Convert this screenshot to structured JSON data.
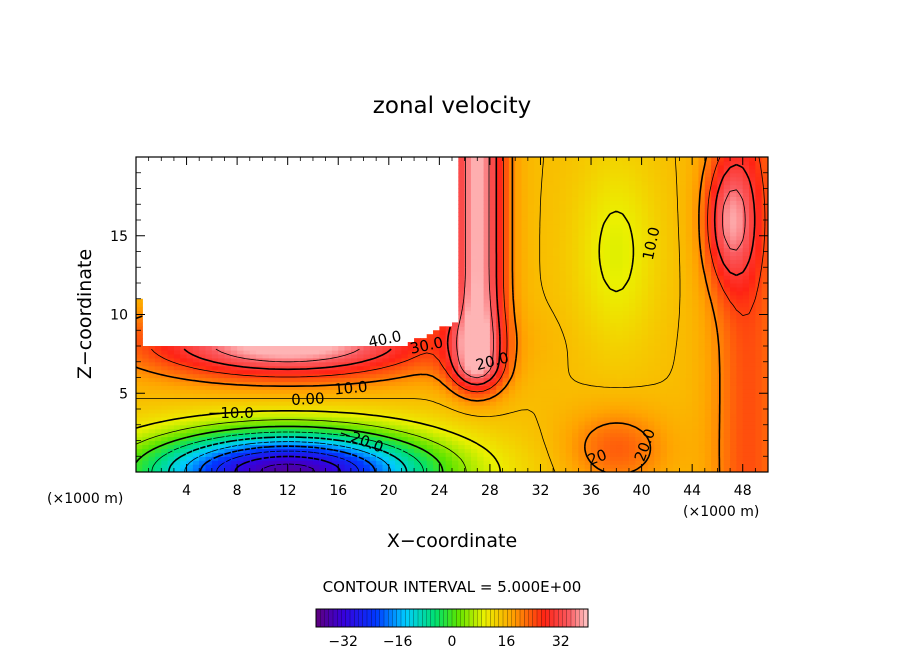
{
  "chart_data": {
    "type": "heatmap",
    "title": "zonal velocity",
    "xlabel": "X−coordinate",
    "ylabel": "Z−coordinate",
    "x_unit_left": "(×1000 m)",
    "x_unit_right": "(×1000 m)",
    "xlim": [
      0,
      50
    ],
    "ylim": [
      0,
      20
    ],
    "x_ticks": [
      4,
      8,
      12,
      16,
      20,
      24,
      28,
      32,
      36,
      40,
      44,
      48
    ],
    "x_tick_labels": [
      "4",
      "8",
      "12",
      "16",
      "20",
      "24",
      "28",
      "32",
      "36",
      "40",
      "44",
      "48"
    ],
    "y_ticks": [
      5,
      10,
      15
    ],
    "y_tick_labels": [
      "5",
      "10",
      "15"
    ],
    "contour_interval_text": "CONTOUR INTERVAL = 5.000E+00",
    "contour_interval": 5,
    "colorbar": {
      "min": -40,
      "max": 40,
      "ticks": [
        -32,
        -16,
        0,
        16,
        32
      ],
      "tick_labels": [
        "−32",
        "−16",
        "0",
        "16",
        "32"
      ]
    },
    "contour_labels": [
      {
        "text": "40.0",
        "x": 19.7,
        "z": 8.4,
        "angle": -12
      },
      {
        "text": "30.0",
        "x": 23.0,
        "z": 8.0,
        "angle": -12
      },
      {
        "text": "20.0",
        "x": 28.2,
        "z": 7.0,
        "angle": -14
      },
      {
        "text": "10.0",
        "x": 17.0,
        "z": 5.3,
        "angle": -5
      },
      {
        "text": "0.00",
        "x": 13.6,
        "z": 4.6,
        "angle": -3
      },
      {
        "text": "−10.0",
        "x": 7.5,
        "z": 3.7,
        "angle": 0
      },
      {
        "text": "−20.0",
        "x": 17.8,
        "z": 2.0,
        "angle": 20
      },
      {
        "text": "10.0",
        "x": 40.8,
        "z": 14.5,
        "angle": -78
      },
      {
        "text": "20.0",
        "x": 40.3,
        "z": 1.7,
        "angle": -70
      },
      {
        "text": "20",
        "x": 36.5,
        "z": 0.9,
        "angle": -20
      }
    ],
    "masked_region": "terrain (white, no data) upper-left: x 0–26, z 8–20",
    "colormap": "rainbow (purple→blue→cyan→green→yellow→orange→red→pink)"
  }
}
